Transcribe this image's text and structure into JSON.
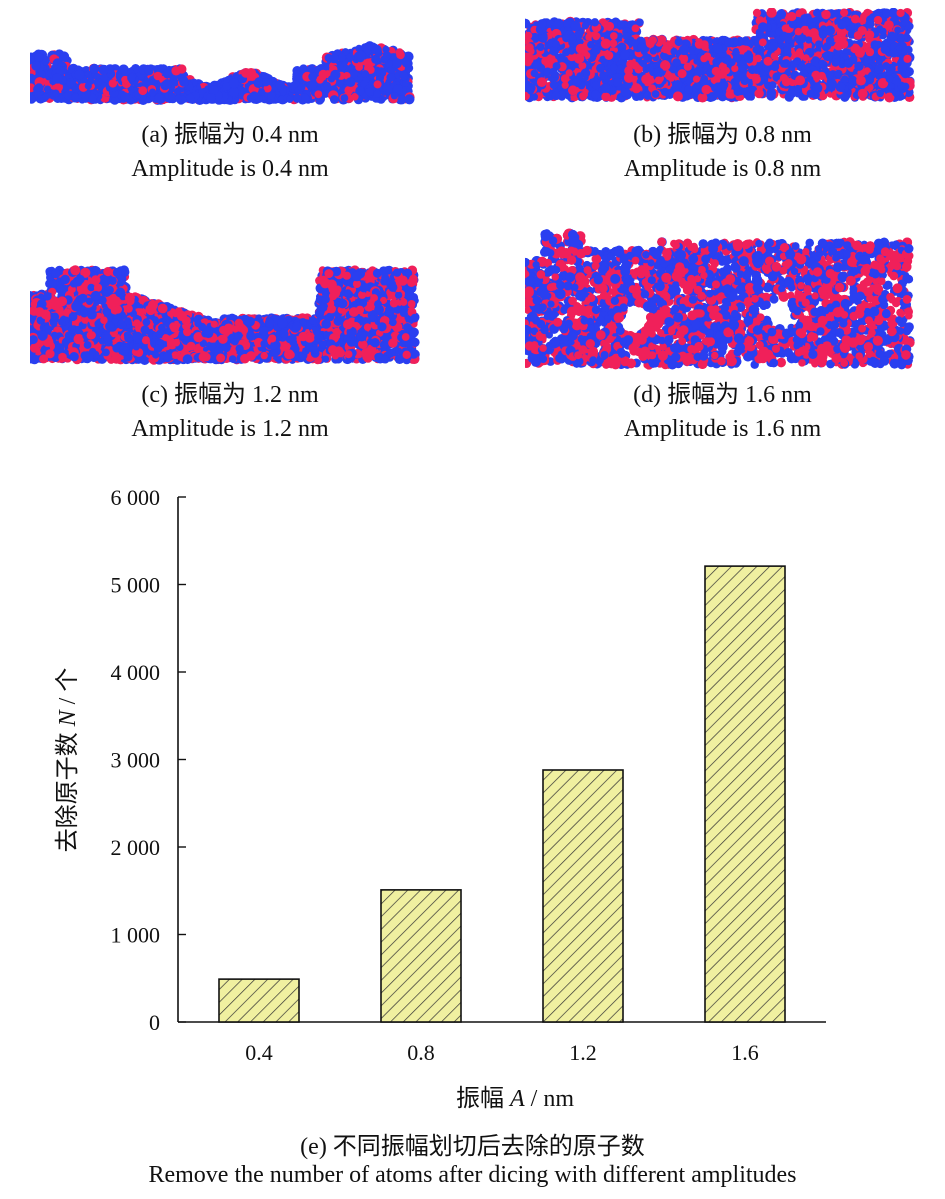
{
  "panels": [
    {
      "id": "a",
      "caption_cn": "(a) 振幅为 0.4 nm",
      "caption_en": "Amplitude is 0.4 nm"
    },
    {
      "id": "b",
      "caption_cn": "(b) 振幅为 0.8 nm",
      "caption_en": "Amplitude is 0.8 nm"
    },
    {
      "id": "c",
      "caption_cn": "(c) 振幅为 1.2 nm",
      "caption_en": "Amplitude is 1.2 nm"
    },
    {
      "id": "d",
      "caption_cn": "(d) 振幅为 1.6 nm",
      "caption_en": "Amplitude is 1.6 nm"
    }
  ],
  "colors": {
    "atom_blue": "#2a3ff0",
    "atom_red": "#f0205a",
    "bar_fill": "#f0f0a0",
    "bar_hatch": "#333333"
  },
  "chart_data": {
    "type": "bar",
    "categories": [
      "0.4",
      "0.8",
      "1.2",
      "1.6"
    ],
    "values": [
      490,
      1510,
      2880,
      5210
    ],
    "ylim": [
      0,
      6000
    ],
    "yticks": [
      0,
      1000,
      2000,
      3000,
      4000,
      5000,
      6000
    ],
    "ytick_labels": [
      "0",
      "1 000",
      "2 000",
      "3 000",
      "4 000",
      "5 000",
      "6 000"
    ],
    "xlabel_cn": "振幅",
    "xlabel_var": "A",
    "xlabel_unit": " / nm",
    "ylabel_cn": "去除原子数",
    "ylabel_var": "N",
    "ylabel_unit": " / 个",
    "caption_cn": "(e) 不同振幅划切后去除的原子数",
    "caption_en": "Remove the number of atoms after dicing with different amplitudes",
    "grid": false,
    "legend": false
  }
}
